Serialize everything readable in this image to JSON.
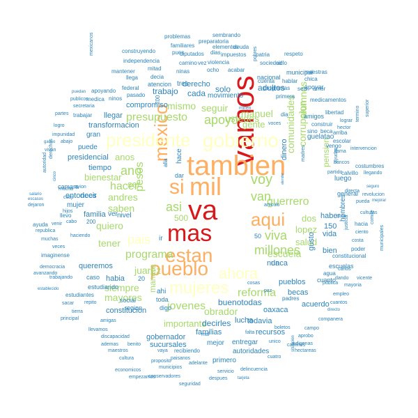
{
  "palette": {
    "tier1": "#d7191c",
    "tier2": "#fdae61",
    "tier3": "#ffffbf",
    "tier4": "#a6d96a",
    "tier5": "#2b83ba",
    "tier6": "#2b83ba"
  },
  "words": [
    {
      "text": "va",
      "tier": 1
    },
    {
      "text": "vamos",
      "tier": 1
    },
    {
      "text": "mas",
      "tier": 1
    },
    {
      "text": "tambien",
      "tier": 2
    },
    {
      "text": "mil",
      "tier": 2
    },
    {
      "text": "si",
      "tier": 2
    },
    {
      "text": "mexico",
      "tier": 2
    },
    {
      "text": "estan",
      "tier": 2
    },
    {
      "text": "pueblo",
      "tier": 2
    },
    {
      "text": "aqui",
      "tier": 2
    },
    {
      "text": "presidente",
      "tier": 3
    },
    {
      "text": "gobierno",
      "tier": 3
    },
    {
      "text": "mujeres",
      "tier": 3
    },
    {
      "text": "ahora",
      "tier": 3
    },
    {
      "text": "pais",
      "tier": 3
    },
    {
      "text": "voy",
      "tier": 4
    },
    {
      "text": "van",
      "tier": 4
    },
    {
      "text": "millones",
      "tier": 4
    },
    {
      "text": "viva",
      "tier": 4
    },
    {
      "text": "apoyo",
      "tier": 4
    },
    {
      "text": "presupuesto",
      "tier": 4
    },
    {
      "text": "ano",
      "tier": 4
    },
    {
      "text": "hacer",
      "tier": 4
    },
    {
      "text": "asi",
      "tier": 4
    },
    {
      "text": "programa",
      "tier": 4
    },
    {
      "text": "pesos",
      "tier": 4
    },
    {
      "text": "jovenes",
      "tier": 4
    },
    {
      "text": "reforma",
      "tier": 4
    },
    {
      "text": "guerrero",
      "tier": 4
    },
    {
      "text": "comunidades",
      "tier": 4
    },
    {
      "text": "escuela",
      "tier": 4
    },
    {
      "text": "mismo",
      "tier": 4
    },
    {
      "text": "seguir",
      "tier": 4
    },
    {
      "text": "ustedes",
      "tier": 4
    },
    {
      "text": "manuel",
      "tier": 4
    },
    {
      "text": "alumnos",
      "tier": 4
    },
    {
      "text": "corrupcion",
      "tier": 4
    },
    {
      "text": "andres",
      "tier": 4
    },
    {
      "text": "saben",
      "tier": 4
    },
    {
      "text": "quiero",
      "tier": 4
    },
    {
      "text": "tener",
      "tier": 4
    },
    {
      "text": "siempre",
      "tier": 4
    },
    {
      "text": "mayores",
      "tier": 4
    },
    {
      "text": "juarez",
      "tier": 4
    },
    {
      "text": "obrador",
      "tier": 4
    },
    {
      "text": "importante",
      "tier": 4
    },
    {
      "text": "bienestar",
      "tier": 4
    },
    {
      "text": "anos",
      "tier": 4
    },
    {
      "text": "gente",
      "tier": 4
    },
    {
      "text": "salud",
      "tier": 4
    },
    {
      "text": "lopez",
      "tier": 4
    },
    {
      "text": "dos",
      "tier": 4
    },
    {
      "text": "manera",
      "tier": 4
    },
    {
      "text": "ser",
      "tier": 4
    },
    {
      "text": "500",
      "tier": 4
    },
    {
      "text": "pension",
      "tier": 4
    },
    {
      "text": "solo",
      "tier": 5
    },
    {
      "text": "adultos",
      "tier": 5
    },
    {
      "text": "cada",
      "tier": 5
    },
    {
      "text": "trabajo",
      "tier": 5
    },
    {
      "text": "compromiso",
      "tier": 5
    },
    {
      "text": "derecho",
      "tier": 5
    },
    {
      "text": "llegar",
      "tier": 5
    },
    {
      "text": "transformacion",
      "tier": 5
    },
    {
      "text": "puede",
      "tier": 5
    },
    {
      "text": "presidencial",
      "tier": 5
    },
    {
      "text": "tiempo",
      "tier": 5
    },
    {
      "text": "entonces",
      "tier": 5
    },
    {
      "text": "decir",
      "tier": 5
    },
    {
      "text": "familia",
      "tier": 5
    },
    {
      "text": "mujer",
      "tier": 5
    },
    {
      "text": "ver",
      "tier": 5
    },
    {
      "text": "nivel",
      "tier": 5
    },
    {
      "text": "queremos",
      "tier": 5
    },
    {
      "text": "habia",
      "tier": 5
    },
    {
      "text": "constitucion",
      "tier": 5
    },
    {
      "text": "decirles",
      "tier": 5
    },
    {
      "text": "familias",
      "tier": 5
    },
    {
      "text": "lucha",
      "tier": 5
    },
    {
      "text": "todavia",
      "tier": 5
    },
    {
      "text": "buenotodas",
      "tier": 5
    },
    {
      "text": "becas",
      "tier": 5
    },
    {
      "text": "pueblos",
      "tier": 5
    },
    {
      "text": "nunca",
      "tier": 5
    },
    {
      "text": "oaxaca",
      "tier": 5
    },
    {
      "text": "haber",
      "tier": 5
    },
    {
      "text": "vida",
      "tier": 5
    },
    {
      "text": "bien",
      "tier": 5
    },
    {
      "text": "luego",
      "tier": 5
    },
    {
      "text": "dinero",
      "tier": 5
    },
    {
      "text": "recursos",
      "tier": 5
    },
    {
      "text": "gobernador",
      "tier": 5
    },
    {
      "text": "sucursales",
      "tier": 5
    },
    {
      "text": "mejor",
      "tier": 5
    },
    {
      "text": "entregar",
      "tier": 5
    },
    {
      "text": "autoridades",
      "tier": 5
    },
    {
      "text": "primero",
      "tier": 5
    },
    {
      "text": "acuerdo",
      "tier": 5
    },
    {
      "text": "150",
      "tier": 5
    },
    {
      "text": "gusto",
      "tier": 5
    },
    {
      "text": "hombres",
      "tier": 5
    },
    {
      "text": "da",
      "tier": 5
    },
    {
      "text": "region",
      "tier": 5
    },
    {
      "text": "social",
      "tier": 5
    },
    {
      "text": "general",
      "tier": 5
    },
    {
      "text": "200",
      "tier": 5
    },
    {
      "text": "50",
      "tier": 5
    },
    {
      "text": "20",
      "tier": 5
    },
    {
      "text": "ir",
      "tier": 5
    },
    {
      "text": "ahi",
      "tier": 5
    },
    {
      "text": "toda",
      "tier": 5
    },
    {
      "text": "digo",
      "tier": 5
    },
    {
      "text": "hace",
      "tier": 5
    },
    {
      "text": "alla",
      "tier": 5
    },
    {
      "text": "dar",
      "tier": 5
    },
    {
      "text": "700",
      "tier": 5
    },
    {
      "text": "movimiento",
      "tier": 5
    },
    {
      "text": "caso",
      "tier": 5
    },
    {
      "text": "estudiando",
      "tier": 5
    },
    {
      "text": "cuanto",
      "tier": 5
    },
    {
      "text": "guelatao",
      "tier": 5
    },
    {
      "text": "escuelas",
      "tier": 5
    },
    {
      "text": "municipal",
      "tier": 5
    },
    {
      "text": "tres",
      "tier": 5
    },
    {
      "text": "atencion",
      "tier": 5
    },
    {
      "text": "apoyar",
      "tier": 5
    },
    {
      "text": "amigos",
      "tier": 5
    },
    {
      "text": "nacional",
      "tier": 5
    },
    {
      "text": "gran",
      "tier": 5
    },
    {
      "text": "camara",
      "tier": 5
    },
    {
      "text": "problemas",
      "tier": 6
    },
    {
      "text": "sembrando",
      "tier": 6
    },
    {
      "text": "preparatoria",
      "tier": 6
    },
    {
      "text": "familiares",
      "tier": 6
    },
    {
      "text": "elementos",
      "tier": 6
    },
    {
      "text": "deuda",
      "tier": 6
    },
    {
      "text": "construyendo",
      "tier": 6
    },
    {
      "text": "pues",
      "tier": 6
    },
    {
      "text": "diputados",
      "tier": 6
    },
    {
      "text": "dias",
      "tier": 6
    },
    {
      "text": "impuestos",
      "tier": 6
    },
    {
      "text": "patria",
      "tier": 6
    },
    {
      "text": "respeto",
      "tier": 6
    },
    {
      "text": "independencia",
      "tier": 6
    },
    {
      "text": "camino",
      "tier": 6
    },
    {
      "text": "vez",
      "tier": 6
    },
    {
      "text": "violencia",
      "tier": 6
    },
    {
      "text": "ciclo",
      "tier": 6
    },
    {
      "text": "sociedad",
      "tier": 6
    },
    {
      "text": "mitad",
      "tier": 6
    },
    {
      "text": "ninas",
      "tier": 6
    },
    {
      "text": "ocho",
      "tier": 6
    },
    {
      "text": "acabar",
      "tier": 6
    },
    {
      "text": "maestras",
      "tier": 6
    },
    {
      "text": "mantener",
      "tier": 6
    },
    {
      "text": "decia",
      "tier": 6
    },
    {
      "text": "chica",
      "tier": 6
    },
    {
      "text": "mexicanos",
      "tier": 6
    },
    {
      "text": "llega",
      "tier": 6
    },
    {
      "text": "hablar",
      "tier": 6
    },
    {
      "text": "pobres",
      "tier": 6
    },
    {
      "text": "cuenta",
      "tier": 6
    },
    {
      "text": "federal",
      "tier": 6
    },
    {
      "text": "programas",
      "tier": 6
    },
    {
      "text": "seis",
      "tier": 6
    },
    {
      "text": "amor",
      "tier": 6
    },
    {
      "text": "puedan",
      "tier": 6
    },
    {
      "text": "apoyando",
      "tier": 6
    },
    {
      "text": "ninos",
      "tier": 6
    },
    {
      "text": "pasado",
      "tier": 6
    },
    {
      "text": "primera",
      "tier": 6
    },
    {
      "text": "medicamentos",
      "tier": 6
    },
    {
      "text": "medica",
      "tier": 6
    },
    {
      "text": "publicos",
      "tier": 6
    },
    {
      "text": "miren",
      "tier": 6
    },
    {
      "text": "dia",
      "tier": 6
    },
    {
      "text": "secretaria",
      "tier": 6
    },
    {
      "text": "partes",
      "tier": 6
    },
    {
      "text": "trabajar",
      "tier": 6
    },
    {
      "text": "libertad",
      "tier": 6
    },
    {
      "text": "lograr",
      "tier": 6
    },
    {
      "text": "hector",
      "tier": 6
    },
    {
      "text": "construir",
      "tier": 6
    },
    {
      "text": "logro",
      "tier": 6
    },
    {
      "text": "voces",
      "tier": 6
    },
    {
      "text": "impunidad",
      "tier": 6
    },
    {
      "text": "sino",
      "tier": 6
    },
    {
      "text": "beca",
      "tier": 6
    },
    {
      "text": "arriba",
      "tier": 6
    },
    {
      "text": "ganso",
      "tier": 6
    },
    {
      "text": "abajo",
      "tier": 6
    },
    {
      "text": "escolar",
      "tier": 6
    },
    {
      "text": "vengo",
      "tier": 6
    },
    {
      "text": "llama",
      "tier": 6
    },
    {
      "text": "termino",
      "tier": 6
    },
    {
      "text": "superior",
      "tier": 6
    },
    {
      "text": "vivan",
      "tier": 6
    },
    {
      "text": "derechos",
      "tier": 6
    },
    {
      "text": "intervencion",
      "tier": 6
    },
    {
      "text": "bancos",
      "tier": 6
    },
    {
      "text": "costumbres",
      "tier": 6
    },
    {
      "text": "autoridad",
      "tier": 6
    },
    {
      "text": "salario",
      "tier": 6
    },
    {
      "text": "escasos",
      "tier": 6
    },
    {
      "text": "dejaron",
      "tier": 6
    },
    {
      "text": "mucha",
      "tier": 6
    },
    {
      "text": "cinco",
      "tier": 6
    },
    {
      "text": "cuaji",
      "tier": 6
    },
    {
      "text": "avion",
      "tier": 6
    },
    {
      "text": "atender",
      "tier": 6
    },
    {
      "text": "madres",
      "tier": 6
    },
    {
      "text": "calvillo",
      "tier": 6
    },
    {
      "text": "llegando",
      "tier": 6
    },
    {
      "text": "seguro",
      "tier": 6
    },
    {
      "text": "directa",
      "tier": 6
    },
    {
      "text": "partido",
      "tier": 6
    },
    {
      "text": "ayudar",
      "tier": 6
    },
    {
      "text": "revolucion",
      "tier": 6
    },
    {
      "text": "pueda",
      "tier": 6
    },
    {
      "text": "mejorar",
      "tier": 6
    },
    {
      "text": "culturas",
      "tier": 6
    },
    {
      "text": "articulo",
      "tier": 6
    },
    {
      "text": "llevo",
      "tier": 6
    },
    {
      "text": "ayuda",
      "tier": 6
    },
    {
      "text": "republica",
      "tier": 6
    },
    {
      "text": "muchas",
      "tier": 6
    },
    {
      "text": "veces",
      "tier": 6
    },
    {
      "text": "imaginense",
      "tier": 6
    },
    {
      "text": "democracia",
      "tier": 6
    },
    {
      "text": "trabajando",
      "tier": 6
    },
    {
      "text": "establecido",
      "tier": 6
    },
    {
      "text": "avanzando",
      "tier": 6
    },
    {
      "text": "estudiantes",
      "tier": 6
    },
    {
      "text": "sacar",
      "tier": 6
    },
    {
      "text": "repito",
      "tier": 6
    },
    {
      "text": "tierra",
      "tier": 6
    },
    {
      "text": "principal",
      "tier": 6
    },
    {
      "text": "amigas",
      "tier": 6
    },
    {
      "text": "llevamos",
      "tier": 6
    },
    {
      "text": "discapacidad",
      "tier": 6
    },
    {
      "text": "ademas",
      "tier": 6
    },
    {
      "text": "benito",
      "tier": 6
    },
    {
      "text": "maestros",
      "tier": 6
    },
    {
      "text": "cultura",
      "tier": 6
    },
    {
      "text": "economicos",
      "tier": 6
    },
    {
      "text": "empezamos",
      "tier": 6
    },
    {
      "text": "conservadores",
      "tier": 6
    },
    {
      "text": "seguridad",
      "tier": 6
    },
    {
      "text": "despues",
      "tier": 6
    },
    {
      "text": "tarjeta",
      "tier": 6
    },
    {
      "text": "servicio",
      "tier": 6
    },
    {
      "text": "delincuencia",
      "tier": 6
    },
    {
      "text": "situacion",
      "tier": 6
    },
    {
      "text": "cuatro",
      "tier": 6
    },
    {
      "text": "hectareas",
      "tier": 6
    },
    {
      "text": "caminos",
      "tier": 6
    },
    {
      "text": "indigenas",
      "tier": 6
    },
    {
      "text": "aprobo",
      "tier": 6
    },
    {
      "text": "campo",
      "tier": 6
    },
    {
      "text": "boletos",
      "tier": 6
    },
    {
      "text": "falta",
      "tier": 6
    },
    {
      "text": "unico",
      "tier": 6
    },
    {
      "text": "companera",
      "tier": 6
    },
    {
      "text": "empleo",
      "tier": 6
    },
    {
      "text": "cuantos",
      "tier": 6
    },
    {
      "text": "directo",
      "tier": 6
    },
    {
      "text": "dando",
      "tier": 6
    },
    {
      "text": "vicente",
      "tier": 6
    },
    {
      "text": "mayoria",
      "tier": 6
    },
    {
      "text": "publica",
      "tier": 6
    },
    {
      "text": "agua",
      "tier": 6
    },
    {
      "text": "constitucional",
      "tier": 6
    },
    {
      "text": "poder",
      "tier": 6
    },
    {
      "text": "comite",
      "tier": 6
    },
    {
      "text": "municipales",
      "tier": 6
    },
    {
      "text": "ciento",
      "tier": 6
    },
    {
      "text": "hacia",
      "tier": 6
    },
    {
      "text": "costa",
      "tier": 6
    },
    {
      "text": "carlos",
      "tier": 6
    },
    {
      "text": "coro",
      "tier": 6
    },
    {
      "text": "justicia",
      "tier": 6
    },
    {
      "text": "padres",
      "tier": 6
    },
    {
      "text": "paz",
      "tier": 6
    },
    {
      "text": "cosas",
      "tier": 6
    },
    {
      "text": "vaya",
      "tier": 6
    },
    {
      "text": "recibiendo",
      "tier": 6
    },
    {
      "text": "paisanos",
      "tier": 6
    },
    {
      "text": "adelante",
      "tier": 6
    },
    {
      "text": "proposito",
      "tier": 6
    },
    {
      "text": "municipios",
      "tier": 6
    },
    {
      "text": "mal",
      "tier": 6
    },
    {
      "text": "venir",
      "tier": 6
    },
    {
      "text": "cabo",
      "tier": 6
    },
    {
      "text": "haciendo",
      "tier": 6
    },
    {
      "text": "hijos",
      "tier": 6
    }
  ]
}
